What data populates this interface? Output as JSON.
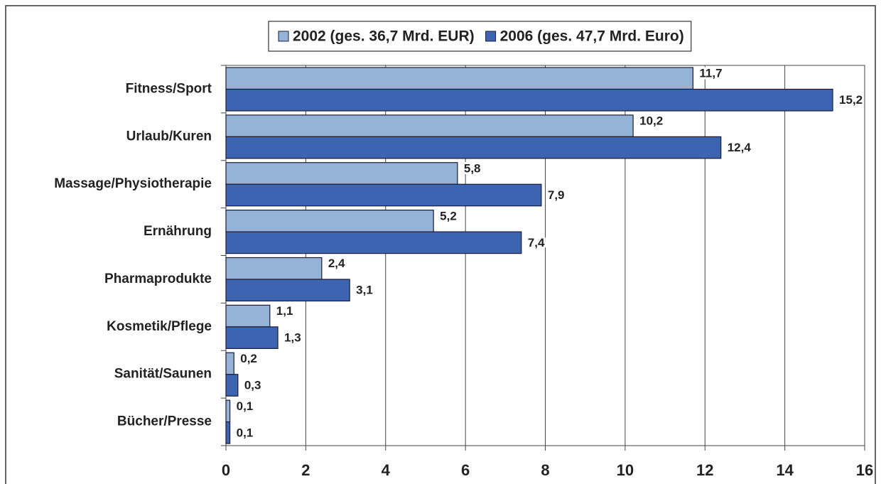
{
  "chart_data": {
    "type": "bar",
    "orientation": "horizontal",
    "categories": [
      "Fitness/Sport",
      "Urlaub/Kuren",
      "Massage/Physiotherapie",
      "Ernährung",
      "Pharmaprodukte",
      "Kosmetik/Pflege",
      "Sanität/Saunen",
      "Bücher/Presse"
    ],
    "series": [
      {
        "name": "2002 (ges. 36,7 Mrd. EUR)",
        "color": "#95b3d7",
        "values": [
          11.7,
          10.2,
          5.8,
          5.2,
          2.4,
          1.1,
          0.2,
          0.1
        ],
        "value_labels": [
          "11,7",
          "10,2",
          "5,8",
          "5,2",
          "2,4",
          "1,1",
          "0,2",
          "0,1"
        ]
      },
      {
        "name": "2006 (ges. 47,7 Mrd. Euro)",
        "color": "#3c64b1",
        "values": [
          15.2,
          12.4,
          7.9,
          7.4,
          3.1,
          1.3,
          0.3,
          0.1
        ],
        "value_labels": [
          "15,2",
          "12,4",
          "7,9",
          "7,4",
          "3,1",
          "1,3",
          "0,3",
          "0,1"
        ]
      }
    ],
    "xlim": [
      0,
      16
    ],
    "xticks": [
      0,
      2,
      4,
      6,
      8,
      10,
      12,
      14,
      16
    ],
    "grid": true,
    "legend": "top"
  }
}
